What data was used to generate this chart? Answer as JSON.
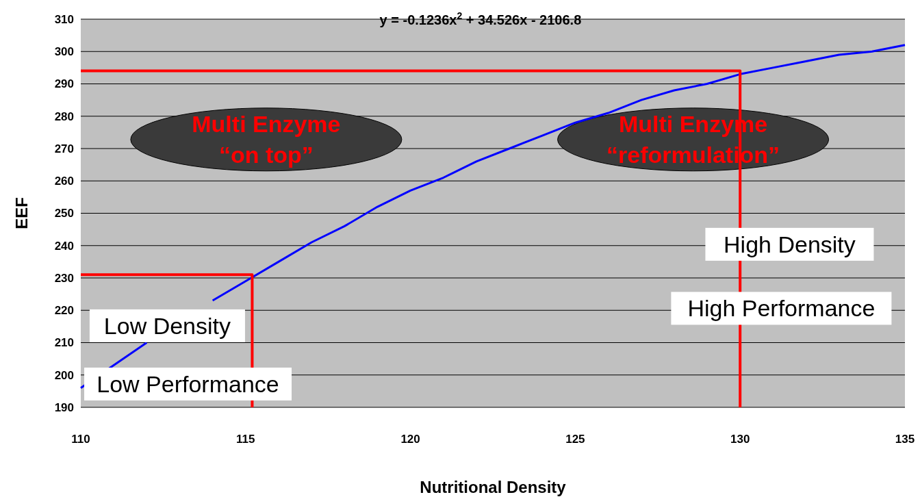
{
  "chart_data": {
    "type": "line",
    "title": "y = -0.1236x$^{2}$ + 34.526x - 2106.8",
    "xlabel": "Nutritional Density",
    "ylabel": "EEF",
    "xlim": [
      110,
      135
    ],
    "xticks": [
      110,
      115,
      120,
      125,
      130,
      135
    ],
    "ylim": [
      190,
      310
    ],
    "yticks": [
      190,
      200,
      210,
      220,
      230,
      240,
      250,
      260,
      270,
      280,
      290,
      300,
      310
    ],
    "grid": "y",
    "marker": "none",
    "line_style": "solid",
    "series": [
      {
        "color": "#0000ff",
        "x": [
          110,
          111,
          112,
          113,
          114,
          115,
          116,
          117,
          118,
          119,
          120,
          121,
          122,
          123,
          124,
          125,
          126,
          127,
          128,
          129,
          130,
          131,
          132,
          133,
          134,
          135
        ],
        "values": [
          196,
          203,
          210,
          null,
          223,
          229,
          235,
          241,
          246,
          252,
          257,
          261,
          266,
          270,
          274,
          278,
          281,
          285,
          288,
          290,
          293,
          295,
          297,
          299,
          300,
          302
        ]
      },
      {
        "color": "#ff0000",
        "x": [
          110,
          130,
          130
        ],
        "values": [
          294,
          294,
          190
        ]
      },
      {
        "color": "#ff0000",
        "x": [
          110,
          115.2,
          115.2
        ],
        "values": [
          231,
          231,
          190
        ]
      }
    ],
    "annotations": [
      "Multi Enzyme",
      "“on top”",
      "Multi Enzyme",
      "“reformulation”",
      "Low Density",
      "Low Performance",
      "High Density",
      "High Performance"
    ]
  }
}
